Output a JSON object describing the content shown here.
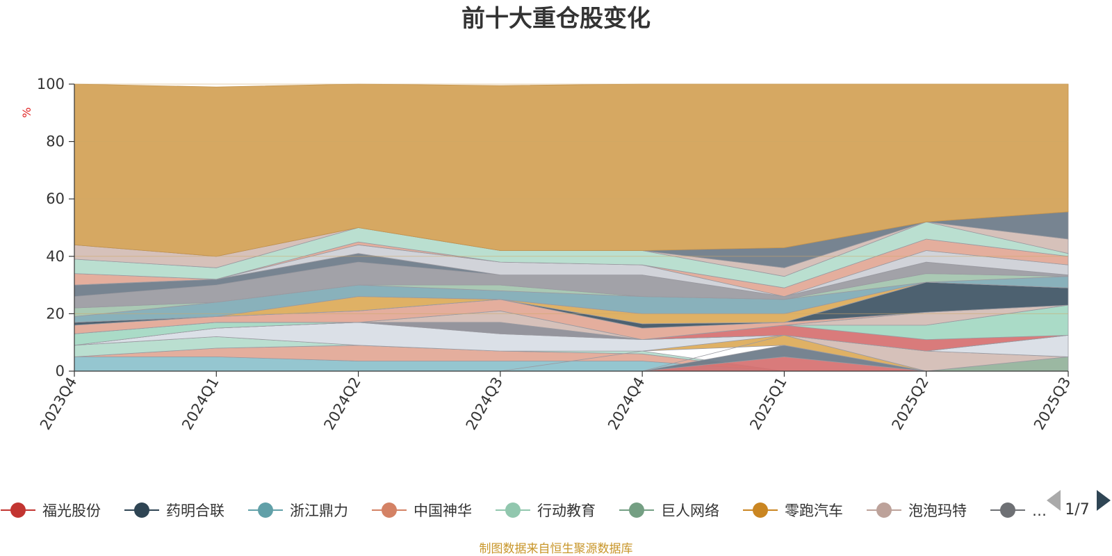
{
  "colors": {
    "background": "#ffffff",
    "title": "#333333",
    "axis": "#333333",
    "grid": "#cfa867",
    "dominant_area": "#d6a862",
    "unit": "#e02020",
    "footer": "#c8962a"
  },
  "chart_data": {
    "type": "area",
    "title": "前十大重仓股变化",
    "ylabel": "%",
    "ylim": [
      0,
      100
    ],
    "yticks": [
      "0",
      "20",
      "40",
      "60",
      "80",
      "100"
    ],
    "categories": [
      "2023Q4",
      "2024Q1",
      "2024Q2",
      "2024Q3",
      "2024Q4",
      "2025Q1",
      "2025Q2",
      "2025Q3"
    ],
    "layers": [
      {
        "color": "#8cc1cc",
        "values": [
          [
            0,
            5
          ],
          [
            0,
            5
          ],
          [
            0,
            3.5
          ],
          [
            0,
            3.5
          ],
          [
            0,
            3.5
          ],
          [
            0,
            0
          ],
          [
            0,
            0
          ],
          [
            0,
            0
          ]
        ]
      },
      {
        "color": "#e2a795",
        "values": [
          [
            5,
            5
          ],
          [
            5,
            8
          ],
          [
            3.5,
            9
          ],
          [
            3.5,
            7
          ],
          [
            3.5,
            6
          ],
          [
            0,
            0
          ],
          [
            0,
            0
          ],
          [
            0,
            0
          ]
        ]
      },
      {
        "color": "#b4dccc",
        "values": [
          [
            5,
            9
          ],
          [
            8,
            12
          ],
          [
            9,
            9
          ],
          [
            7,
            7
          ],
          [
            6,
            7
          ],
          [
            0,
            0
          ],
          [
            0,
            0
          ],
          [
            0,
            0
          ]
        ]
      },
      {
        "color": "#d67070",
        "values": [
          [
            0,
            0
          ],
          [
            0,
            0
          ],
          [
            0,
            0
          ],
          [
            0,
            0
          ],
          [
            0,
            0
          ],
          [
            0,
            5
          ],
          [
            0,
            0
          ],
          [
            0,
            0
          ]
        ]
      },
      {
        "color": "#6b7a88",
        "values": [
          [
            0,
            0
          ],
          [
            0,
            0
          ],
          [
            0,
            0
          ],
          [
            0,
            0
          ],
          [
            0,
            0
          ],
          [
            5,
            9
          ],
          [
            0,
            0
          ],
          [
            0,
            0
          ]
        ]
      },
      {
        "color": "#dcaa58",
        "values": [
          [
            0,
            0
          ],
          [
            0,
            0
          ],
          [
            0,
            0
          ],
          [
            0,
            0
          ],
          [
            7,
            7
          ],
          [
            9,
            12.5
          ],
          [
            0,
            0
          ],
          [
            0,
            0
          ]
        ]
      },
      {
        "color": "#93b29a",
        "values": [
          [
            0,
            0
          ],
          [
            0,
            0
          ],
          [
            0,
            0
          ],
          [
            0,
            0
          ],
          [
            0,
            0
          ],
          [
            0,
            0
          ],
          [
            0,
            0
          ],
          [
            0,
            5
          ]
        ]
      },
      {
        "color": "#d2bcb4",
        "values": [
          [
            0,
            0
          ],
          [
            0,
            0
          ],
          [
            0,
            0
          ],
          [
            0,
            0
          ],
          [
            0,
            0
          ],
          [
            12.5,
            12.5
          ],
          [
            0,
            7
          ],
          [
            5,
            5
          ]
        ]
      },
      {
        "color": "#d8dde5",
        "values": [
          [
            9,
            9
          ],
          [
            12,
            15
          ],
          [
            9,
            17
          ],
          [
            7,
            13
          ],
          [
            7,
            11
          ],
          [
            12.5,
            12.5
          ],
          [
            7,
            7
          ],
          [
            5,
            12.5
          ]
        ]
      },
      {
        "color": "#8c8c95",
        "values": [
          [
            9,
            9
          ],
          [
            15,
            15
          ],
          [
            17,
            17
          ],
          [
            13,
            17
          ],
          [
            11,
            11
          ],
          [
            12.5,
            12.5
          ],
          [
            7,
            7
          ],
          [
            12.5,
            12.5
          ]
        ]
      },
      {
        "color": "#d67070",
        "values": [
          [
            9,
            9
          ],
          [
            15,
            15
          ],
          [
            17,
            17
          ],
          [
            17,
            17
          ],
          [
            11,
            11
          ],
          [
            12.5,
            16
          ],
          [
            7,
            11
          ],
          [
            12.5,
            12.5
          ]
        ]
      },
      {
        "color": "#a3d8c2",
        "values": [
          [
            9,
            13
          ],
          [
            15,
            17
          ],
          [
            17,
            17
          ],
          [
            17,
            17
          ],
          [
            11,
            11
          ],
          [
            16,
            16
          ],
          [
            11,
            16
          ],
          [
            12.5,
            23
          ]
        ]
      },
      {
        "color": "#d2bcb4",
        "values": [
          [
            13,
            13
          ],
          [
            17,
            17
          ],
          [
            17,
            17
          ],
          [
            17,
            21
          ],
          [
            11,
            11
          ],
          [
            16,
            16
          ],
          [
            16,
            20.5
          ],
          [
            23,
            23
          ]
        ]
      },
      {
        "color": "#e2a795",
        "values": [
          [
            13,
            16
          ],
          [
            17,
            19
          ],
          [
            17,
            21
          ],
          [
            21,
            25
          ],
          [
            11,
            15
          ],
          [
            16,
            17
          ],
          [
            20.5,
            20.5
          ],
          [
            23,
            23
          ]
        ]
      },
      {
        "color": "#3e5464",
        "values": [
          [
            16,
            17
          ],
          [
            19,
            19
          ],
          [
            21,
            21
          ],
          [
            25,
            25
          ],
          [
            15,
            16.5
          ],
          [
            17,
            17
          ],
          [
            20.5,
            31
          ],
          [
            23,
            29
          ]
        ]
      },
      {
        "color": "#dcaa58",
        "values": [
          [
            17,
            17
          ],
          [
            19,
            19
          ],
          [
            21,
            26
          ],
          [
            25,
            25
          ],
          [
            16.5,
            20
          ],
          [
            17,
            20
          ],
          [
            31,
            31
          ],
          [
            29,
            29
          ]
        ]
      },
      {
        "color": "#7faab5",
        "values": [
          [
            17,
            19
          ],
          [
            19,
            24
          ],
          [
            26,
            30
          ],
          [
            25,
            28
          ],
          [
            20,
            26
          ],
          [
            20,
            25
          ],
          [
            31,
            31
          ],
          [
            29,
            33
          ]
        ]
      },
      {
        "color": "#a3c4ae",
        "values": [
          [
            19,
            22
          ],
          [
            24,
            24
          ],
          [
            30,
            30
          ],
          [
            28,
            30
          ],
          [
            26,
            26
          ],
          [
            25,
            25
          ],
          [
            31,
            34
          ],
          [
            33,
            33
          ]
        ]
      },
      {
        "color": "#9a9aa1",
        "values": [
          [
            22,
            26
          ],
          [
            24,
            30
          ],
          [
            30,
            38
          ],
          [
            30,
            33.5
          ],
          [
            26,
            33.5
          ],
          [
            25,
            26
          ],
          [
            34,
            38
          ],
          [
            33,
            33.5
          ]
        ]
      },
      {
        "color": "#6b7a88",
        "values": [
          [
            26,
            30
          ],
          [
            30,
            32
          ],
          [
            38,
            41
          ],
          [
            33.5,
            33.5
          ],
          [
            33.5,
            33.5
          ],
          [
            26,
            26
          ],
          [
            38,
            38
          ],
          [
            33.5,
            33.5
          ]
        ]
      },
      {
        "color": "#cdcfd6",
        "values": [
          [
            30,
            30
          ],
          [
            32,
            32
          ],
          [
            41,
            44
          ],
          [
            33.5,
            38
          ],
          [
            33.5,
            37
          ],
          [
            26,
            26
          ],
          [
            38,
            42
          ],
          [
            33.5,
            37
          ]
        ]
      },
      {
        "color": "#e2a795",
        "values": [
          [
            30,
            34
          ],
          [
            32,
            32
          ],
          [
            44,
            45
          ],
          [
            38,
            38
          ],
          [
            37,
            37
          ],
          [
            26,
            29
          ],
          [
            42,
            46
          ],
          [
            37,
            40
          ]
        ]
      },
      {
        "color": "#b4dccc",
        "values": [
          [
            34,
            39
          ],
          [
            32,
            36
          ],
          [
            45,
            50
          ],
          [
            38,
            42
          ],
          [
            37,
            42
          ],
          [
            29,
            33
          ],
          [
            46,
            52
          ],
          [
            40,
            41
          ]
        ]
      },
      {
        "color": "#d2bcb4",
        "values": [
          [
            39,
            44
          ],
          [
            36,
            40
          ],
          [
            50,
            50
          ],
          [
            42,
            42
          ],
          [
            42,
            42
          ],
          [
            33,
            36
          ],
          [
            52,
            52
          ],
          [
            41,
            46
          ]
        ]
      },
      {
        "color": "#6b7a88",
        "values": [
          [
            44,
            44
          ],
          [
            40,
            40
          ],
          [
            50,
            50
          ],
          [
            42,
            42
          ],
          [
            42,
            42
          ],
          [
            36,
            43
          ],
          [
            52,
            52
          ],
          [
            46,
            55.5
          ]
        ]
      },
      {
        "color": "#d6a862",
        "values": [
          [
            44,
            100
          ],
          [
            40,
            99
          ],
          [
            50,
            100
          ],
          [
            42,
            99.5
          ],
          [
            42,
            100
          ],
          [
            43,
            100
          ],
          [
            52,
            100
          ],
          [
            55.5,
            100
          ]
        ]
      }
    ],
    "legend": [
      {
        "name": "福光股份",
        "color": "#c23531"
      },
      {
        "name": "药明合联",
        "color": "#2f4554"
      },
      {
        "name": "浙江鼎力",
        "color": "#61a0a8"
      },
      {
        "name": "中国神华",
        "color": "#d48265"
      },
      {
        "name": "行动教育",
        "color": "#91c7ae"
      },
      {
        "name": "巨人网络",
        "color": "#749f83"
      },
      {
        "name": "零跑汽车",
        "color": "#ca8622"
      },
      {
        "name": "泡泡玛特",
        "color": "#bda29a"
      },
      {
        "name": "…",
        "color": "#6e7074"
      }
    ],
    "legend_page": "1/7",
    "footer": "制图数据来自恒生聚源数据库"
  }
}
